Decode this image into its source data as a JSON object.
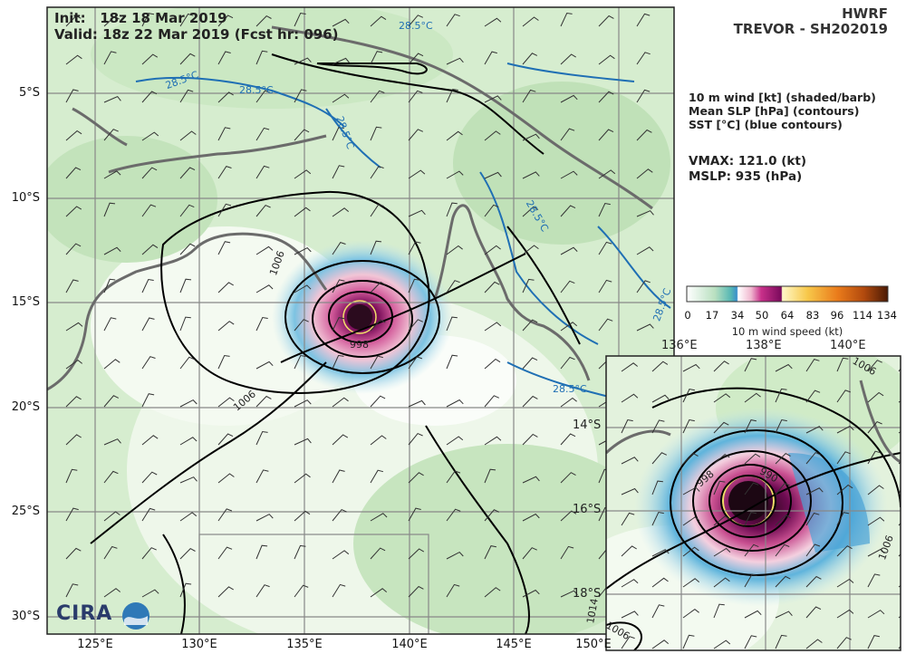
{
  "header": {
    "model": "HWRF",
    "storm": "TREVOR - SH202019",
    "init": "Init:   18z 18 Mar 2019",
    "valid": "Valid: 18z 22 Mar 2019 (Fcst hr: 096)"
  },
  "legend_text": {
    "line1": "10 m wind [kt] (shaded/barb)",
    "line2": "Mean SLP [hPa] (contours)",
    "line3": "SST [°C] (blue contours)"
  },
  "stats": {
    "vmax": "VMAX: 121.0 (kt)",
    "mslp": "MSLP:  935 (hPa)"
  },
  "colorbar": {
    "title": "10 m wind speed (kt)",
    "ticks": [
      "0",
      "17",
      "34",
      "50",
      "64",
      "83",
      "96",
      "114",
      "134"
    ]
  },
  "main_map": {
    "lat_labels": [
      "5°S",
      "10°S",
      "15°S",
      "20°S",
      "25°S",
      "30°S"
    ],
    "lon_labels": [
      "125°E",
      "130°E",
      "135°E",
      "140°E",
      "145°E",
      "150°E"
    ],
    "slp_labels": [
      "1006",
      "998",
      "1006"
    ],
    "sst_labels": [
      "28.5°C",
      "28.5°C",
      "28.5°C",
      "28.5°C",
      "28.5°C",
      "28.5°C",
      "28.5°C"
    ]
  },
  "inset_map": {
    "lat_labels": [
      "14°S",
      "16°S",
      "18°S"
    ],
    "lon_labels": [
      "136°E",
      "138°E",
      "140°E"
    ],
    "slp_labels": [
      "998",
      "990",
      "1006",
      "1006",
      "1014",
      "1006"
    ]
  },
  "logo": {
    "text": "CIRA"
  },
  "colors": {
    "land_green": "#cfe9c4",
    "wind_blue": "#3aa0c8",
    "wind_pink": "#e89ab8",
    "wind_magenta": "#a0106a",
    "sst_contour": "#1f6fb4",
    "coast": "#6b6b6b",
    "slp_contour": "#000000"
  }
}
